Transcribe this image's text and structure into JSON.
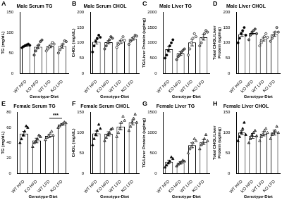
{
  "chart_data": [
    {
      "type": "bar",
      "panel_label": "A",
      "title": "Male Serum TG",
      "xlabel": "Genotype-Diet",
      "ylabel": "TG (mg/dL)",
      "categories": [
        "WT HFD",
        "KO HFD",
        "WT LFD",
        "KO LFD"
      ],
      "values": [
        68,
        65,
        66,
        67
      ],
      "errors": [
        2,
        4,
        3,
        5
      ],
      "points": [
        [
          63,
          66,
          68,
          70,
          72,
          69
        ],
        [
          45,
          55,
          62,
          70,
          78,
          82
        ],
        [
          55,
          60,
          65,
          70,
          76,
          72
        ],
        [
          50,
          58,
          66,
          72,
          80,
          78
        ]
      ],
      "colors": [
        "#000000",
        "#808080",
        "#ffffff",
        "#c0c0c0"
      ],
      "marker": "circle",
      "ylim": [
        0,
        150
      ],
      "yticks": [
        0,
        50,
        100,
        150
      ],
      "grid": false
    },
    {
      "type": "bar",
      "panel_label": "B",
      "title": "Male Serum CHOL",
      "xlabel": "Genotype-Diet",
      "ylabel": "CHOL (mg/dL)",
      "categories": [
        "WT HFD",
        "KO HFD",
        "WT LFD",
        "KO LFD"
      ],
      "values": [
        103,
        102,
        103,
        113
      ],
      "errors": [
        7,
        5,
        5,
        4
      ],
      "points": [
        [
          70,
          90,
          105,
          115,
          125,
          118
        ],
        [
          80,
          90,
          100,
          110,
          120,
          115
        ],
        [
          85,
          95,
          100,
          110,
          120,
          108
        ],
        [
          95,
          105,
          110,
          118,
          125,
          122
        ]
      ],
      "colors": [
        "#000000",
        "#808080",
        "#ffffff",
        "#c0c0c0"
      ],
      "marker": "circle",
      "ylim": [
        0,
        200
      ],
      "yticks": [
        0,
        50,
        100,
        150,
        200
      ],
      "grid": false
    },
    {
      "type": "bar",
      "panel_label": "C",
      "title": "Male Liver TG",
      "xlabel": "Genotype-Diet",
      "ylabel": "TG/Liver Protein (ug/mg)",
      "categories": [
        "WT HFD",
        "KO HFD",
        "WT LFD",
        "KO LFD"
      ],
      "values": [
        790,
        650,
        1010,
        1180
      ],
      "errors": [
        90,
        60,
        110,
        90
      ],
      "points": [
        [
          500,
          600,
          750,
          900,
          1000,
          1100
        ],
        [
          450,
          550,
          600,
          700,
          750,
          800
        ],
        [
          600,
          800,
          1000,
          1150,
          1300,
          1200
        ],
        [
          900,
          1000,
          1150,
          1300,
          1400,
          1350
        ]
      ],
      "colors": [
        "#000000",
        "#808080",
        "#ffffff",
        "#c0c0c0"
      ],
      "marker": "circle",
      "ylim": [
        0,
        2000
      ],
      "yticks": [
        0,
        500,
        1000,
        1500,
        2000
      ],
      "grid": false
    },
    {
      "type": "bar",
      "panel_label": "D",
      "title": "Male Liver CHOL",
      "xlabel": "Genotype-Diet",
      "ylabel": [
        "Total CHOL/Liver",
        "Protein (ug/mg)"
      ],
      "categories": [
        "WT HFD",
        "KO HFD",
        "WT LFD",
        "KO LFD"
      ],
      "values": [
        128,
        132,
        112,
        128
      ],
      "errors": [
        7,
        5,
        6,
        7
      ],
      "points": [
        [
          100,
          115,
          130,
          140,
          150,
          125
        ],
        [
          110,
          125,
          135,
          140,
          145,
          130
        ],
        [
          90,
          100,
          110,
          120,
          130,
          118
        ],
        [
          105,
          115,
          125,
          135,
          150,
          135
        ]
      ],
      "colors": [
        "#000000",
        "#808080",
        "#ffffff",
        "#c0c0c0"
      ],
      "marker": "circle",
      "ylim": [
        0,
        200
      ],
      "yticks": [
        0,
        50,
        100,
        150,
        200
      ],
      "grid": false
    },
    {
      "type": "bar",
      "panel_label": "E",
      "title": "Female Serum TG",
      "xlabel": "Genotype-Diet",
      "ylabel": "TG (mg/dL)",
      "categories": [
        "WT HFD",
        "KO HFD",
        "WT LFD",
        "KO LFD"
      ],
      "values": [
        52,
        43,
        49,
        64
      ],
      "errors": [
        3,
        3,
        2,
        1
      ],
      "points": [
        [
          40,
          45,
          50,
          55,
          62,
          60
        ],
        [
          35,
          40,
          42,
          45,
          50,
          48
        ],
        [
          44,
          47,
          49,
          52,
          55,
          50
        ],
        [
          60,
          62,
          64,
          65,
          67,
          66
        ]
      ],
      "colors": [
        "#000000",
        "#808080",
        "#ffffff",
        "#c0c0c0"
      ],
      "marker": "triangle",
      "annotations": [
        {
          "text": "***",
          "from": 2,
          "to": 3,
          "y": 72
        }
      ],
      "ylim": [
        0,
        80
      ],
      "yticks": [
        0,
        20,
        40,
        60,
        80
      ],
      "grid": false
    },
    {
      "type": "bar",
      "panel_label": "F",
      "title": "Female Serum CHOL",
      "xlabel": "Genotype-Diet",
      "ylabel": "CHOL (mg/dL)",
      "categories": [
        "WT HFD",
        "KO HFD",
        "WT LFD",
        "KO LFD"
      ],
      "values": [
        98,
        97,
        115,
        125
      ],
      "errors": [
        6,
        5,
        8,
        6
      ],
      "points": [
        [
          70,
          85,
          95,
          105,
          120,
          110
        ],
        [
          80,
          88,
          95,
          100,
          108,
          110
        ],
        [
          90,
          100,
          110,
          125,
          140,
          130
        ],
        [
          105,
          115,
          125,
          135,
          145,
          125
        ]
      ],
      "colors": [
        "#000000",
        "#808080",
        "#ffffff",
        "#c0c0c0"
      ],
      "marker": "triangle",
      "ylim": [
        0,
        150
      ],
      "yticks": [
        0,
        50,
        100,
        150
      ],
      "grid": false
    },
    {
      "type": "bar",
      "panel_label": "G",
      "title": "Female Liver TG",
      "xlabel": "Genotype-Diet",
      "ylabel": "TG/Liver Protein (ug/mg)",
      "categories": [
        "WT HFD",
        "KO HFD",
        "WT LFD",
        "KO LFD"
      ],
      "values": [
        285,
        260,
        690,
        770
      ],
      "errors": [
        40,
        30,
        60,
        60
      ],
      "points": [
        [
          150,
          200,
          250,
          300,
          400,
          360
        ],
        [
          180,
          220,
          250,
          280,
          320,
          300
        ],
        [
          500,
          600,
          650,
          750,
          850,
          800
        ],
        [
          600,
          700,
          750,
          850,
          950,
          800
        ]
      ],
      "colors": [
        "#000000",
        "#808080",
        "#ffffff",
        "#c0c0c0"
      ],
      "marker": "triangle",
      "ylim": [
        0,
        1500
      ],
      "yticks": [
        0,
        500,
        1000,
        1500
      ],
      "grid": false
    },
    {
      "type": "bar",
      "panel_label": "H",
      "title": "Female Liver CHOL",
      "xlabel": "Genotype-Diet",
      "ylabel": [
        "Total CHOL/Liver",
        "Protein (ug/mg)"
      ],
      "categories": [
        "WT HFD",
        "KO HFD",
        "WT LFD",
        "KO LFD"
      ],
      "values": [
        100,
        92,
        97,
        100
      ],
      "errors": [
        5,
        6,
        5,
        6
      ],
      "points": [
        [
          80,
          90,
          100,
          110,
          125,
          95
        ],
        [
          75,
          85,
          95,
          100,
          105,
          92
        ],
        [
          80,
          90,
          95,
          105,
          110,
          100
        ],
        [
          85,
          95,
          100,
          105,
          115,
          100
        ]
      ],
      "colors": [
        "#000000",
        "#808080",
        "#ffffff",
        "#c0c0c0"
      ],
      "marker": "triangle",
      "ylim": [
        0,
        150
      ],
      "yticks": [
        0,
        50,
        100,
        150
      ],
      "grid": false
    }
  ]
}
